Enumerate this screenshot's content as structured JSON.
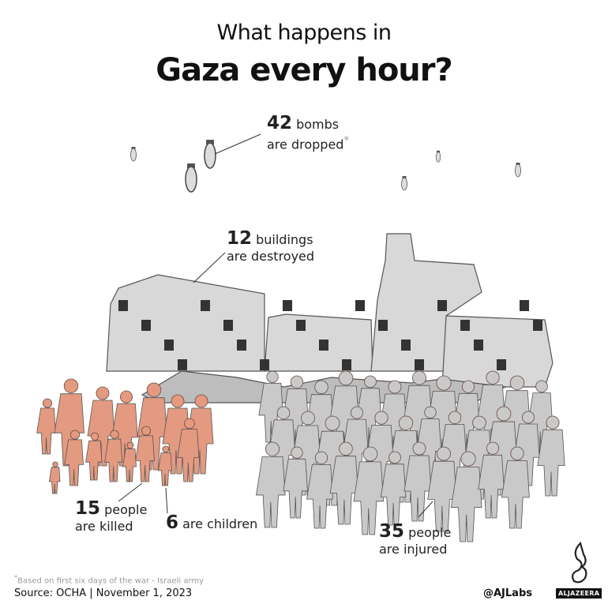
{
  "title": {
    "line1": "What happens in",
    "line2": "Gaza every hour?"
  },
  "stats": {
    "bombs": {
      "number": "42",
      "unit": "bombs",
      "text": "are dropped",
      "asterisk": "*"
    },
    "buildings": {
      "number": "12",
      "unit": "buildings",
      "text": "are destroyed"
    },
    "killed": {
      "number": "15",
      "unit": "people",
      "text": "are killed"
    },
    "children": {
      "number": "6",
      "text": "are children"
    },
    "injured": {
      "number": "35",
      "unit": "people",
      "text": "are injured"
    }
  },
  "footer": {
    "note": "Based on first six days of the war - Israeli army",
    "note_marker": "*",
    "source": "Source:  OCHA  |  November 1, 2023",
    "handle": "@AJLabs",
    "brand": "ALJAZEERA"
  },
  "colors": {
    "killed": "#e39a80",
    "injured": "#c9c9c9",
    "buildings": "#8a8a8a"
  }
}
